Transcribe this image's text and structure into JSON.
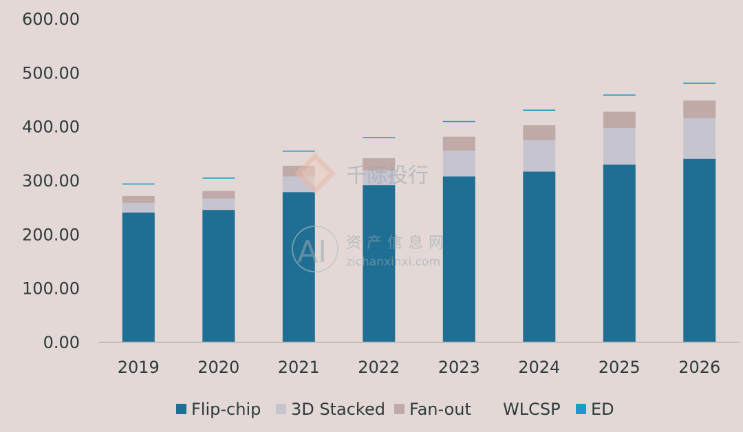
{
  "chart_data": {
    "type": "bar",
    "stacked": true,
    "categories": [
      "2019",
      "2020",
      "2021",
      "2022",
      "2023",
      "2024",
      "2025",
      "2026"
    ],
    "series": [
      {
        "name": "Flip-chip",
        "color": "#1f6f94",
        "values": [
          240,
          245,
          278,
          291,
          307,
          316,
          329,
          340
        ]
      },
      {
        "name": "3D Stacked",
        "color": "#c6c5cf",
        "values": [
          18,
          21,
          29,
          27,
          48,
          58,
          68,
          75
        ]
      },
      {
        "name": "Fan-out",
        "color": "#c0aaa7",
        "values": [
          13,
          14,
          20,
          23,
          26,
          28,
          30,
          33
        ]
      },
      {
        "name": "WLCSP",
        "color": "#e2d8d6",
        "values": [
          21,
          23,
          26,
          37,
          27,
          27,
          30,
          31
        ]
      },
      {
        "name": "ED",
        "color": "#1b9cc8",
        "values": [
          2,
          2,
          2,
          2,
          2,
          2,
          2,
          2
        ]
      }
    ],
    "y_ticks": [
      "0.00",
      "100.00",
      "200.00",
      "300.00",
      "400.00",
      "500.00",
      "600.00"
    ],
    "ylim": [
      0,
      600
    ],
    "legend_position": "bottom",
    "grid": false
  },
  "watermarks": {
    "top": "千际投行",
    "middle": "资产信息网",
    "middle_url": "zichanxinxi.com",
    "logo": "AI"
  }
}
